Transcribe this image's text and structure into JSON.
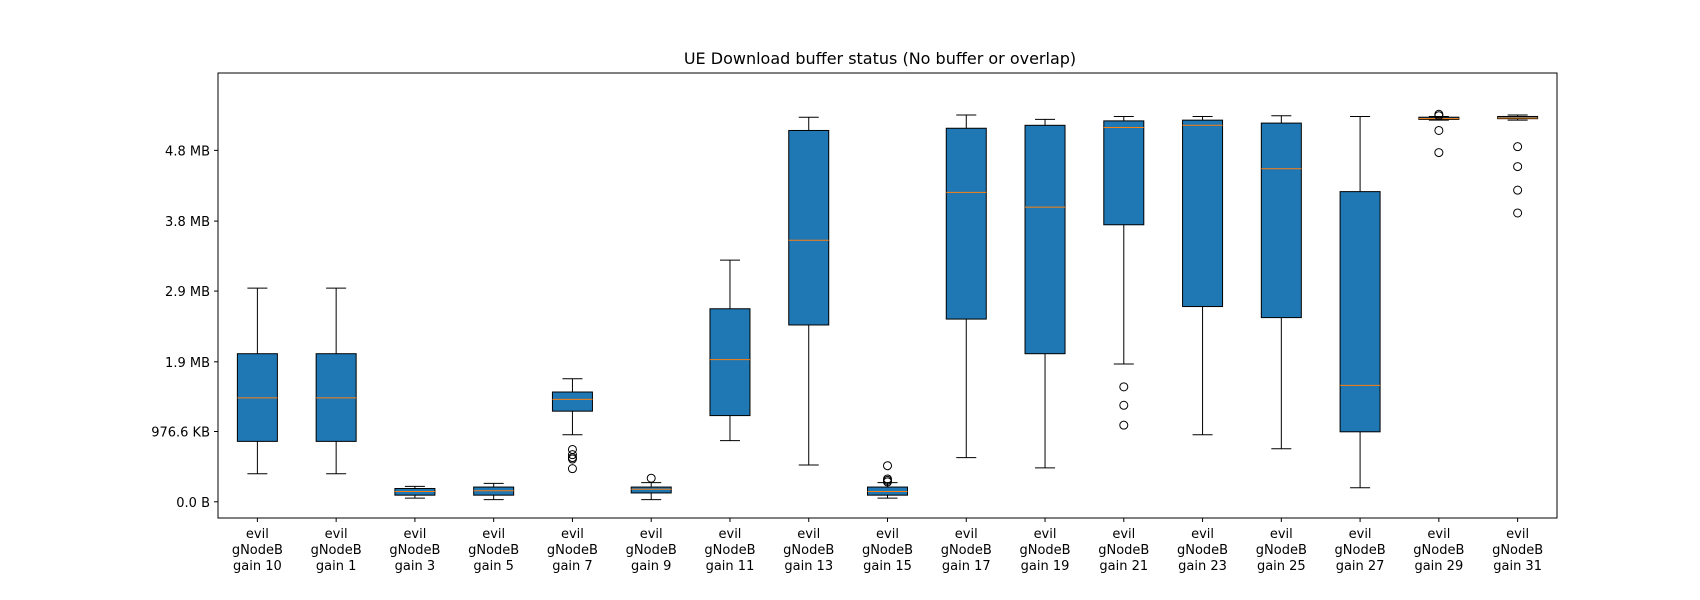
{
  "chart_data": {
    "type": "box",
    "title": "UE Download buffer status (No buffer or overlap)",
    "xlabel": "",
    "ylabel": "",
    "y_unit": "MB",
    "ylim": [
      -0.22,
      5.82
    ],
    "yticks": [
      {
        "value": 0.0,
        "label": "0.0 B"
      },
      {
        "value": 0.954,
        "label": "976.6 KB"
      },
      {
        "value": 1.9,
        "label": "1.9 MB"
      },
      {
        "value": 2.86,
        "label": "2.9 MB"
      },
      {
        "value": 3.81,
        "label": "3.8 MB"
      },
      {
        "value": 4.77,
        "label": "4.8 MB"
      }
    ],
    "categories": [
      [
        "evil",
        "gNodeB",
        "gain 10"
      ],
      [
        "evil",
        "gNodeB",
        "gain 1"
      ],
      [
        "evil",
        "gNodeB",
        "gain 3"
      ],
      [
        "evil",
        "gNodeB",
        "gain 5"
      ],
      [
        "evil",
        "gNodeB",
        "gain 7"
      ],
      [
        "evil",
        "gNodeB",
        "gain 9"
      ],
      [
        "evil",
        "gNodeB",
        "gain 11"
      ],
      [
        "evil",
        "gNodeB",
        "gain 13"
      ],
      [
        "evil",
        "gNodeB",
        "gain 15"
      ],
      [
        "evil",
        "gNodeB",
        "gain 17"
      ],
      [
        "evil",
        "gNodeB",
        "gain 19"
      ],
      [
        "evil",
        "gNodeB",
        "gain 21"
      ],
      [
        "evil",
        "gNodeB",
        "gain 23"
      ],
      [
        "evil",
        "gNodeB",
        "gain 25"
      ],
      [
        "evil",
        "gNodeB",
        "gain 27"
      ],
      [
        "evil",
        "gNodeB",
        "gain 29"
      ],
      [
        "evil",
        "gNodeB",
        "gain 31"
      ]
    ],
    "boxes": [
      {
        "whislo": 0.38,
        "q1": 0.82,
        "med": 1.41,
        "q3": 2.01,
        "whishi": 2.9,
        "fliers": []
      },
      {
        "whislo": 0.38,
        "q1": 0.82,
        "med": 1.41,
        "q3": 2.01,
        "whishi": 2.9,
        "fliers": []
      },
      {
        "whislo": 0.05,
        "q1": 0.09,
        "med": 0.14,
        "q3": 0.18,
        "whishi": 0.21,
        "fliers": []
      },
      {
        "whislo": 0.03,
        "q1": 0.09,
        "med": 0.15,
        "q3": 0.2,
        "whishi": 0.25,
        "fliers": []
      },
      {
        "whislo": 0.91,
        "q1": 1.23,
        "med": 1.39,
        "q3": 1.49,
        "whishi": 1.67,
        "fliers": [
          0.71,
          0.64,
          0.6,
          0.58,
          0.45
        ]
      },
      {
        "whislo": 0.03,
        "q1": 0.12,
        "med": 0.17,
        "q3": 0.2,
        "whishi": 0.26,
        "fliers": [
          0.32
        ]
      },
      {
        "whislo": 0.83,
        "q1": 1.17,
        "med": 1.93,
        "q3": 2.62,
        "whishi": 3.28,
        "fliers": []
      },
      {
        "whislo": 0.5,
        "q1": 2.4,
        "med": 3.55,
        "q3": 5.04,
        "whishi": 5.22,
        "fliers": []
      },
      {
        "whislo": 0.05,
        "q1": 0.09,
        "med": 0.14,
        "q3": 0.2,
        "whishi": 0.26,
        "fliers": [
          0.49,
          0.31,
          0.29,
          0.27
        ]
      },
      {
        "whislo": 0.6,
        "q1": 2.48,
        "med": 4.2,
        "q3": 5.07,
        "whishi": 5.25,
        "fliers": []
      },
      {
        "whislo": 0.46,
        "q1": 2.01,
        "med": 4.0,
        "q3": 5.11,
        "whishi": 5.19,
        "fliers": []
      },
      {
        "whislo": 1.87,
        "q1": 3.76,
        "med": 5.08,
        "q3": 5.17,
        "whishi": 5.23,
        "fliers": [
          1.56,
          1.31,
          1.04
        ]
      },
      {
        "whislo": 0.91,
        "q1": 2.65,
        "med": 5.11,
        "q3": 5.18,
        "whishi": 5.23,
        "fliers": []
      },
      {
        "whislo": 0.72,
        "q1": 2.5,
        "med": 4.52,
        "q3": 5.14,
        "whishi": 5.24,
        "fliers": []
      },
      {
        "whislo": 0.19,
        "q1": 0.95,
        "med": 1.58,
        "q3": 4.21,
        "whishi": 5.23,
        "fliers": []
      },
      {
        "whislo": 5.18,
        "q1": 5.19,
        "med": 5.2,
        "q3": 5.22,
        "whishi": 5.23,
        "fliers": [
          5.24,
          5.26,
          5.04,
          4.74
        ]
      },
      {
        "whislo": 5.18,
        "q1": 5.2,
        "med": 5.21,
        "q3": 5.23,
        "whishi": 5.25,
        "fliers": [
          4.82,
          4.55,
          4.23,
          3.92
        ]
      }
    ],
    "grid": false,
    "legend": "none",
    "box_color": "#1f77b4",
    "median_color": "#ff7f0e"
  }
}
